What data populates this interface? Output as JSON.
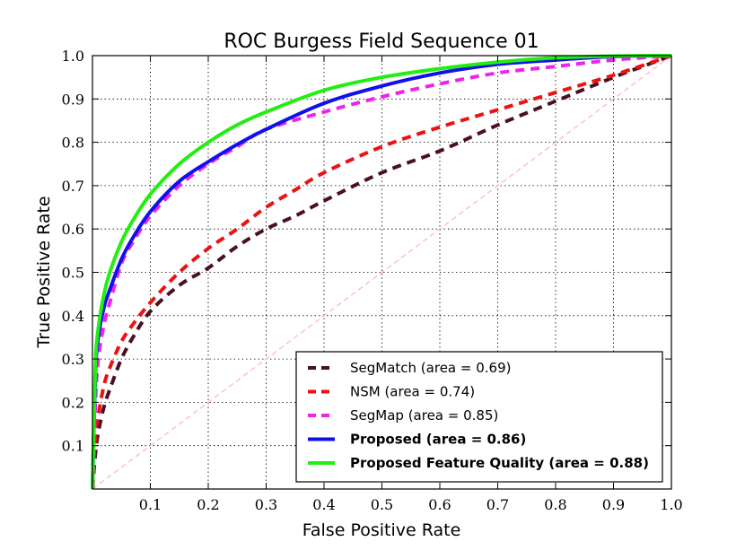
{
  "chart_data": {
    "type": "line",
    "title": "ROC Burgess Field Sequence 01",
    "xlabel": "False Positive Rate",
    "ylabel": "True Positive Rate",
    "xlim": [
      0,
      1
    ],
    "ylim": [
      0,
      1
    ],
    "grid": true,
    "legend_position": "lower-right",
    "x_ticks": [
      {
        "value": 0.1,
        "label": "0.1"
      },
      {
        "value": 0.2,
        "label": "0.2"
      },
      {
        "value": 0.3,
        "label": "0.3"
      },
      {
        "value": 0.4,
        "label": "0.4"
      },
      {
        "value": 0.5,
        "label": "0.5"
      },
      {
        "value": 0.6,
        "label": "0.6"
      },
      {
        "value": 0.7,
        "label": "0.7"
      },
      {
        "value": 0.8,
        "label": "0.8"
      },
      {
        "value": 0.9,
        "label": "0.9"
      },
      {
        "value": 1.0,
        "label": "1.0"
      }
    ],
    "y_ticks": [
      {
        "value": 0.1,
        "label": "0.1"
      },
      {
        "value": 0.2,
        "label": "0.2"
      },
      {
        "value": 0.3,
        "label": "0.3"
      },
      {
        "value": 0.4,
        "label": "0.4"
      },
      {
        "value": 0.5,
        "label": "0.5"
      },
      {
        "value": 0.6,
        "label": "0.6"
      },
      {
        "value": 0.7,
        "label": "0.7"
      },
      {
        "value": 0.8,
        "label": "0.8"
      },
      {
        "value": 0.9,
        "label": "0.9"
      },
      {
        "value": 1.0,
        "label": "1.0"
      }
    ],
    "reference_line": {
      "name": "chance",
      "color": "#ffc0cb",
      "style": "dashed",
      "x": [
        0,
        1
      ],
      "y": [
        0,
        1
      ]
    },
    "series": [
      {
        "name": "SegMatch",
        "legend": "SegMatch  (area = 0.69)",
        "color": "#4b0f24",
        "style": "dashed",
        "bold": false,
        "x": [
          0,
          0.005,
          0.01,
          0.02,
          0.03,
          0.05,
          0.07,
          0.1,
          0.15,
          0.2,
          0.25,
          0.3,
          0.35,
          0.4,
          0.5,
          0.6,
          0.7,
          0.8,
          0.9,
          0.95,
          1.0
        ],
        "y": [
          0,
          0.08,
          0.13,
          0.19,
          0.23,
          0.3,
          0.35,
          0.41,
          0.47,
          0.51,
          0.56,
          0.6,
          0.63,
          0.665,
          0.73,
          0.78,
          0.84,
          0.895,
          0.95,
          0.975,
          1.0
        ]
      },
      {
        "name": "NSM",
        "legend": "NSM (area = 0.74)",
        "color": "#ee1111",
        "style": "dashed",
        "bold": false,
        "x": [
          0,
          0.005,
          0.01,
          0.02,
          0.03,
          0.05,
          0.07,
          0.1,
          0.15,
          0.2,
          0.25,
          0.3,
          0.35,
          0.4,
          0.5,
          0.6,
          0.7,
          0.8,
          0.9,
          1.0
        ],
        "y": [
          0,
          0.12,
          0.17,
          0.24,
          0.28,
          0.34,
          0.38,
          0.43,
          0.5,
          0.555,
          0.6,
          0.65,
          0.69,
          0.73,
          0.79,
          0.835,
          0.875,
          0.915,
          0.955,
          1.0
        ]
      },
      {
        "name": "SegMap",
        "legend": "SegMap (area = 0.85)",
        "color": "#ee22ee",
        "style": "dashed",
        "bold": false,
        "x": [
          0,
          0.005,
          0.01,
          0.02,
          0.03,
          0.05,
          0.07,
          0.1,
          0.15,
          0.2,
          0.25,
          0.3,
          0.4,
          0.5,
          0.6,
          0.7,
          0.8,
          0.9,
          1.0
        ],
        "y": [
          0,
          0.2,
          0.3,
          0.38,
          0.43,
          0.52,
          0.57,
          0.63,
          0.7,
          0.75,
          0.79,
          0.83,
          0.87,
          0.905,
          0.935,
          0.96,
          0.975,
          0.99,
          1.0
        ]
      },
      {
        "name": "Proposed",
        "legend": "Proposed (area = 0.86)",
        "color": "#1010ee",
        "style": "solid",
        "bold": true,
        "x": [
          0,
          0.005,
          0.01,
          0.02,
          0.03,
          0.05,
          0.07,
          0.1,
          0.15,
          0.2,
          0.25,
          0.3,
          0.4,
          0.5,
          0.6,
          0.7,
          0.8,
          0.9,
          1.0
        ],
        "y": [
          0,
          0.26,
          0.35,
          0.42,
          0.46,
          0.53,
          0.58,
          0.64,
          0.71,
          0.755,
          0.795,
          0.83,
          0.89,
          0.93,
          0.96,
          0.98,
          0.99,
          0.998,
          1.0
        ]
      },
      {
        "name": "Proposed Feature Quality",
        "legend": "Proposed Feature Quality (area = 0.88)",
        "color": "#22ee11",
        "style": "solid",
        "bold": true,
        "x": [
          0,
          0.005,
          0.01,
          0.02,
          0.03,
          0.05,
          0.07,
          0.1,
          0.15,
          0.2,
          0.25,
          0.3,
          0.4,
          0.5,
          0.6,
          0.7,
          0.8,
          0.9,
          1.0
        ],
        "y": [
          0,
          0.28,
          0.37,
          0.45,
          0.5,
          0.57,
          0.62,
          0.68,
          0.75,
          0.8,
          0.84,
          0.87,
          0.92,
          0.95,
          0.97,
          0.985,
          0.995,
          0.999,
          1.0
        ]
      }
    ]
  }
}
